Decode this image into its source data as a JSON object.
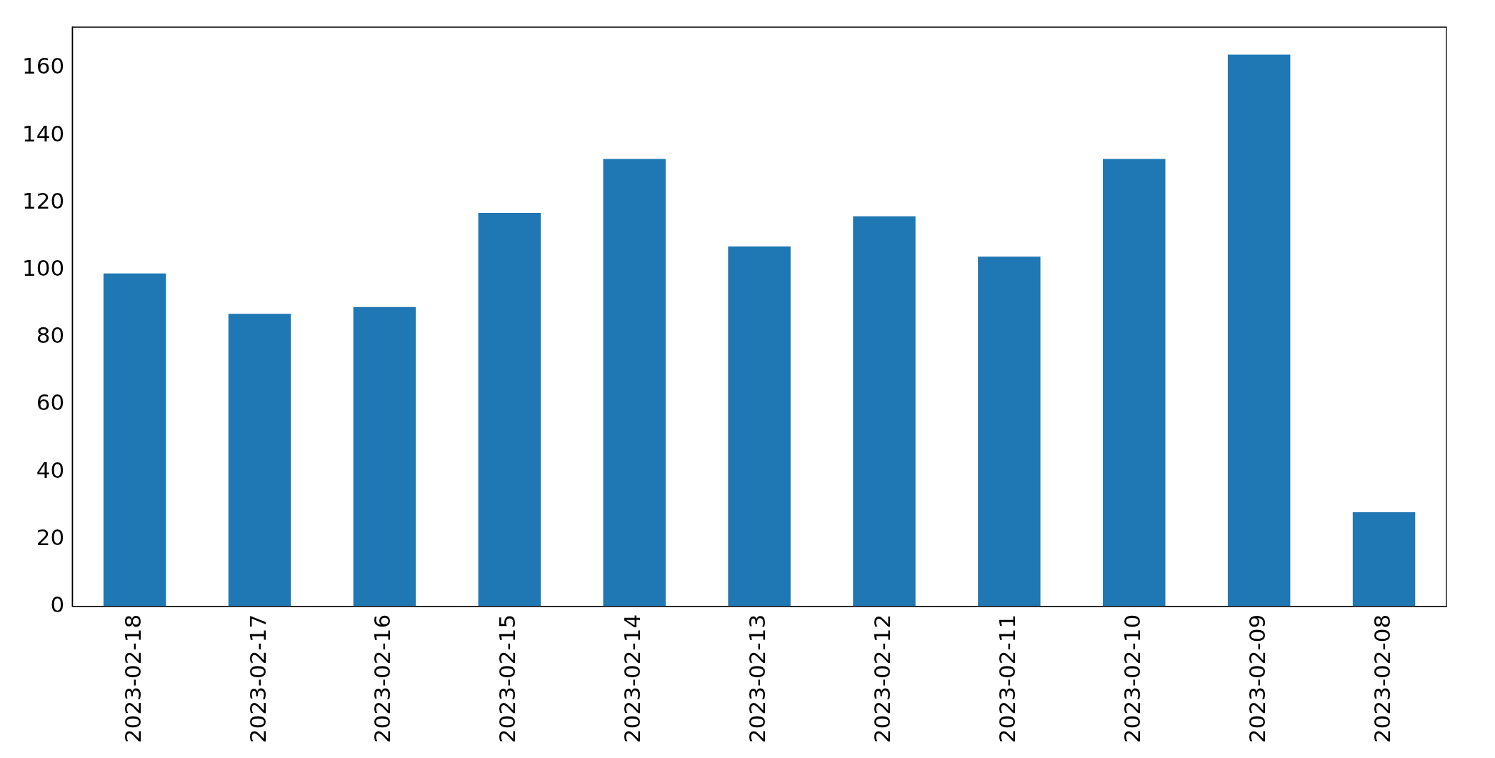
{
  "chart_data": {
    "type": "bar",
    "categories": [
      "2023-02-18",
      "2023-02-17",
      "2023-02-16",
      "2023-02-15",
      "2023-02-14",
      "2023-02-13",
      "2023-02-12",
      "2023-02-11",
      "2023-02-10",
      "2023-02-09",
      "2023-02-08"
    ],
    "values": [
      99,
      87,
      89,
      117,
      133,
      107,
      116,
      104,
      133,
      164,
      28
    ],
    "color": "#1f77b4",
    "ylim": [
      0,
      172.2
    ],
    "yticks": [
      0,
      20,
      40,
      60,
      80,
      100,
      120,
      140,
      160
    ],
    "grid": false,
    "legend": false
  }
}
